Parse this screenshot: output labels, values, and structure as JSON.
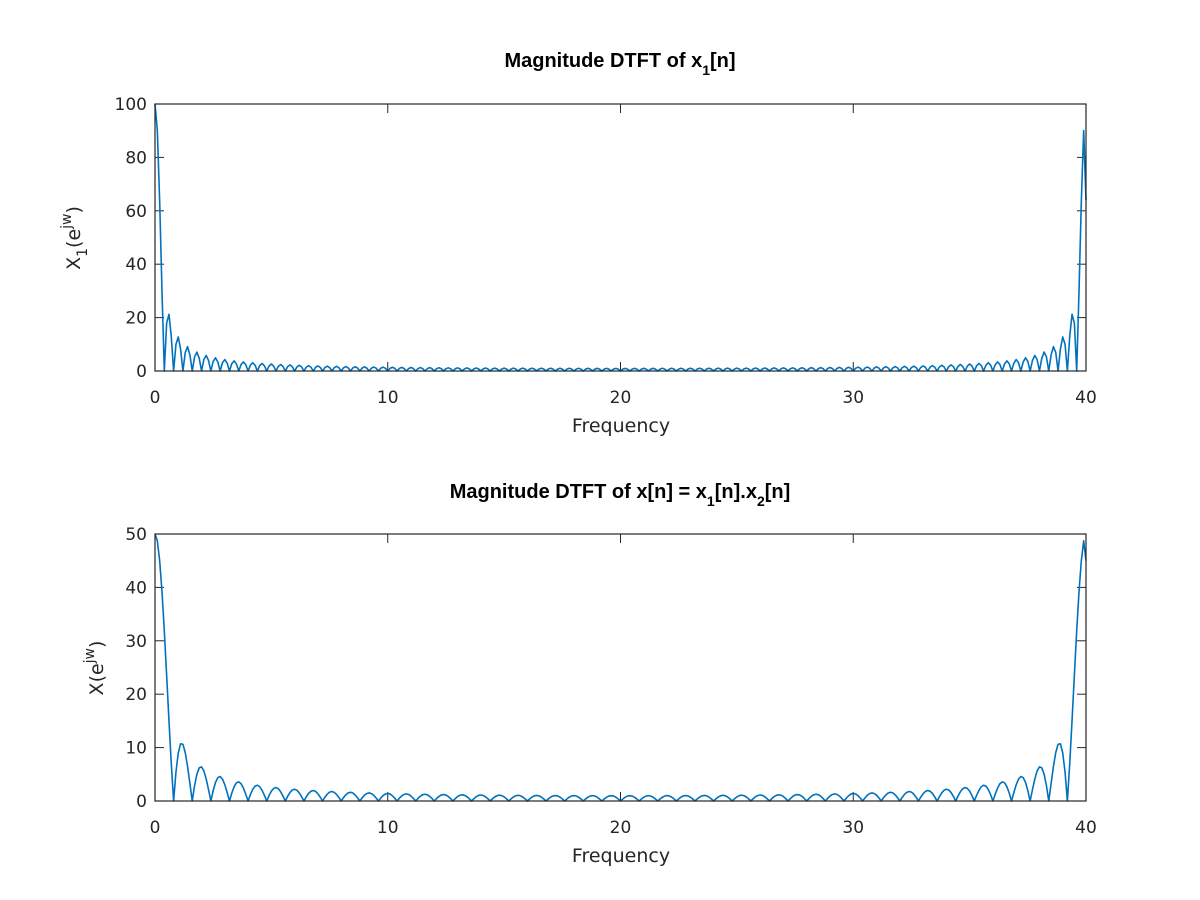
{
  "chart_data": [
    {
      "type": "line",
      "title": "Magnitude DTFT of x",
      "title_sub": "1",
      "title_tail": "[n]",
      "xlabel": "Frequency",
      "ylabel_parts": [
        "X",
        "1",
        "(e",
        "jw",
        ")"
      ],
      "xlim": [
        0,
        40
      ],
      "ylim": [
        0,
        100
      ],
      "xticks": [
        "0",
        "10",
        "20",
        "30",
        "40"
      ],
      "yticks": [
        "0",
        "20",
        "40",
        "60",
        "80",
        "100"
      ],
      "grid": false,
      "line_color": "#0072BD",
      "series": [
        {
          "model": "abs(sin(N*w/2)/sin(w/2)) sampled on 0..40",
          "N": 100,
          "period": 40,
          "samples": 401,
          "peak_start": 100,
          "end_value": 64
        }
      ]
    },
    {
      "type": "line",
      "title": "Magnitude DTFT of x[n] = x",
      "title_sub1": "1",
      "title_mid": "[n].x",
      "title_sub2": "2",
      "title_tail": "[n]",
      "xlabel": "Frequency",
      "ylabel_parts": [
        "X(e",
        "jw",
        ")"
      ],
      "xlim": [
        0,
        40
      ],
      "ylim": [
        0,
        50
      ],
      "xticks": [
        "0",
        "10",
        "20",
        "30",
        "40"
      ],
      "yticks": [
        "0",
        "10",
        "20",
        "30",
        "40",
        "50"
      ],
      "grid": false,
      "line_color": "#0072BD",
      "series": [
        {
          "model": "abs(sin(N*w/2)/sin(w/2)) sampled on 0..40",
          "N": 50,
          "period": 40,
          "samples": 401,
          "peak_start": 50,
          "end_value": 45
        }
      ]
    }
  ]
}
